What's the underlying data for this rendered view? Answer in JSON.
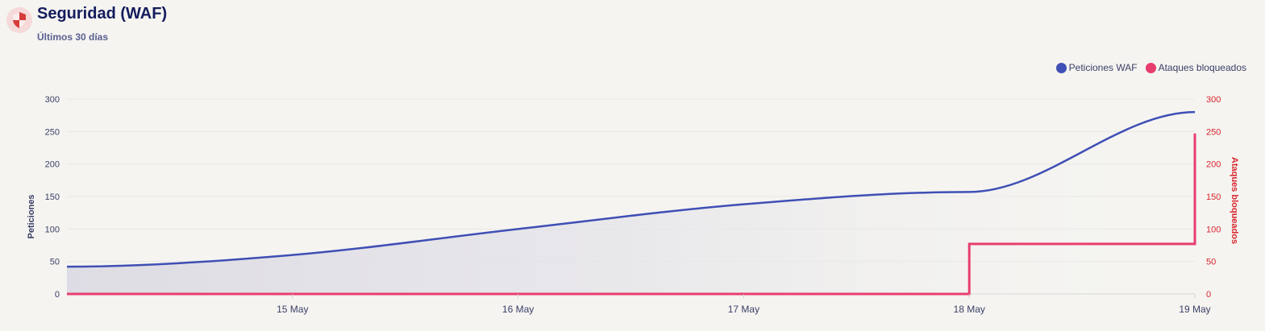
{
  "header": {
    "title": "Seguridad (WAF)",
    "subtitle": "Últimos 30 días",
    "icon": "shield-icon"
  },
  "colors": {
    "requests": "#3f4fb5",
    "blocked": "#e83e6e",
    "right_axis": "#d9262e",
    "shield": "#d63a3a"
  },
  "chart_data": {
    "type": "line",
    "x_range": [
      "2024-05-14",
      "2024-05-19"
    ],
    "x_ticks": [
      {
        "x": "2024-05-15",
        "label": "15 May"
      },
      {
        "x": "2024-05-16",
        "label": "16 May"
      },
      {
        "x": "2024-05-17",
        "label": "17 May"
      },
      {
        "x": "2024-05-18",
        "label": "18 May"
      },
      {
        "x": "2024-05-19",
        "label": "19 May"
      }
    ],
    "y_left": {
      "label": "Peticiones",
      "min": 0,
      "max": 300,
      "ticks": [
        0,
        50,
        100,
        150,
        200,
        250,
        300
      ]
    },
    "y_right": {
      "label": "Ataques bloqueados",
      "min": 0,
      "max": 300,
      "ticks": [
        0,
        50,
        100,
        150,
        200,
        250,
        300
      ]
    },
    "grid": true,
    "legend_position": "top-right",
    "series": [
      {
        "name": "Peticiones WAF",
        "axis": "left",
        "style": "smooth-area",
        "x": [
          "2024-05-14",
          "2024-05-15",
          "2024-05-16",
          "2024-05-17",
          "2024-05-18",
          "2024-05-19"
        ],
        "values": [
          42,
          60,
          100,
          138,
          157,
          280
        ]
      },
      {
        "name": "Ataques bloqueados",
        "axis": "right",
        "style": "step",
        "x": [
          "2024-05-14",
          "2024-05-15",
          "2024-05-16",
          "2024-05-17",
          "2024-05-18",
          "2024-05-19"
        ],
        "values": [
          0,
          0,
          0,
          0,
          77,
          247
        ]
      }
    ]
  }
}
